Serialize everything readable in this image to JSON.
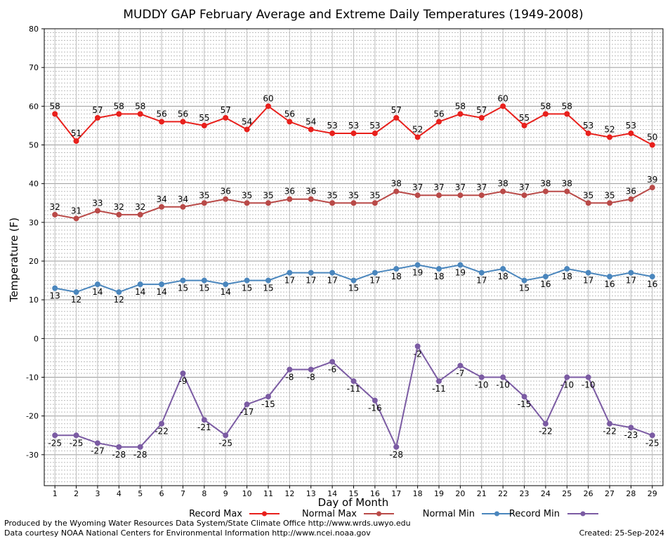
{
  "chart_data": {
    "type": "line",
    "title": "MUDDY GAP February Average and Extreme Daily Temperatures (1949-2008)",
    "xlabel": "Day of Month",
    "ylabel": "Temperature (F)",
    "ylim": [
      -38,
      80
    ],
    "y_ticks": [
      80,
      70,
      60,
      50,
      40,
      30,
      20,
      10,
      0,
      -10,
      -20,
      -30
    ],
    "x": [
      1,
      2,
      3,
      4,
      5,
      6,
      7,
      8,
      9,
      10,
      11,
      12,
      13,
      14,
      15,
      16,
      17,
      18,
      19,
      20,
      21,
      22,
      23,
      24,
      25,
      26,
      27,
      28,
      29
    ],
    "grid": true,
    "legend_position": "bottom",
    "series": [
      {
        "name": "Record Max",
        "color": "#e8201c",
        "values": [
          58,
          51,
          57,
          58,
          58,
          56,
          56,
          55,
          57,
          54,
          60,
          56,
          54,
          53,
          53,
          53,
          57,
          52,
          56,
          58,
          57,
          60,
          55,
          58,
          58,
          53,
          52,
          53,
          50
        ]
      },
      {
        "name": "Normal Max",
        "color": "#b94a48",
        "values": [
          32,
          31,
          33,
          32,
          32,
          34,
          34,
          35,
          36,
          35,
          35,
          36,
          36,
          35,
          35,
          35,
          38,
          37,
          37,
          37,
          37,
          38,
          37,
          38,
          38,
          35,
          35,
          36,
          39
        ]
      },
      {
        "name": "Normal Min",
        "color": "#4a86bd",
        "values": [
          13,
          12,
          14,
          12,
          14,
          14,
          15,
          15,
          14,
          15,
          15,
          17,
          17,
          17,
          15,
          17,
          18,
          19,
          18,
          19,
          17,
          18,
          15,
          16,
          18,
          17,
          16,
          17,
          16
        ]
      },
      {
        "name": "Record Min",
        "color": "#7b5ba3",
        "values": [
          -25,
          -25,
          -27,
          -28,
          -28,
          -22,
          -9,
          -21,
          -25,
          -17,
          -15,
          -8,
          -8,
          -6,
          -11,
          -16,
          -28,
          -2,
          -11,
          -7,
          -10,
          -10,
          -15,
          -22,
          -10,
          -10,
          -22,
          -23,
          -25
        ]
      }
    ]
  },
  "footer": {
    "line1": "Produced by the Wyoming Water Resources Data System/State Climate Office http://www.wrds.uwyo.edu",
    "line2": "Data courtesy NOAA National Centers for Environmental Information http://www.ncei.noaa.gov",
    "created": "Created: 25-Sep-2024"
  }
}
